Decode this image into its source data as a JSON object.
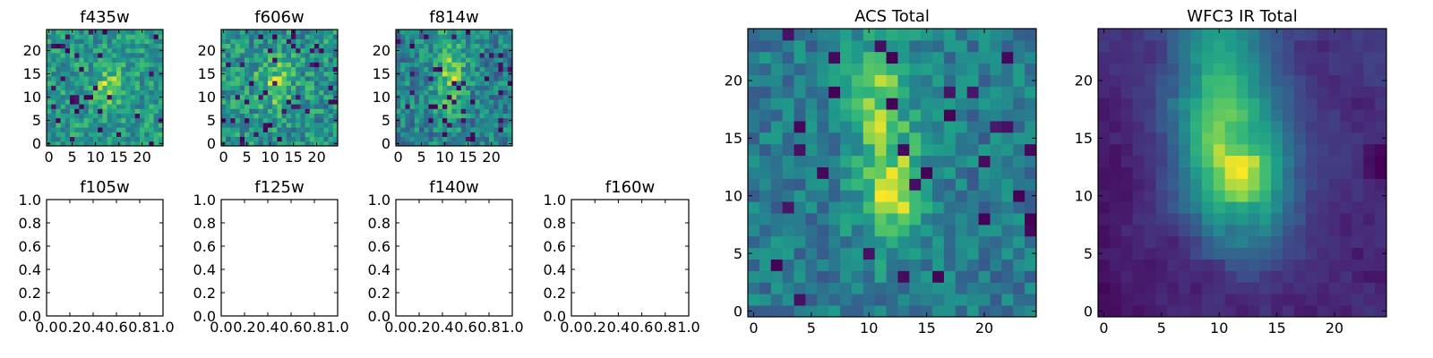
{
  "chart_data": [
    {
      "type": "heatmap",
      "title": "f435w",
      "grid_size": 25,
      "xticks": [
        "0",
        "5",
        "10",
        "15",
        "20"
      ],
      "yticks": [
        "0",
        "5",
        "10",
        "15",
        "20"
      ],
      "xlim": [
        -0.5,
        24.5
      ],
      "ylim": [
        -0.5,
        24.5
      ],
      "colormap": "viridis",
      "pattern": "noisy flux with a faint compact source near (13, 12)"
    },
    {
      "type": "heatmap",
      "title": "f606w",
      "grid_size": 25,
      "xticks": [
        "0",
        "5",
        "10",
        "15",
        "20"
      ],
      "yticks": [
        "0",
        "5",
        "10",
        "15",
        "20"
      ],
      "xlim": [
        -0.5,
        24.5
      ],
      "ylim": [
        -0.5,
        24.5
      ],
      "colormap": "viridis",
      "pattern": "noisy flux with a faint elongated source near (11, 13)"
    },
    {
      "type": "heatmap",
      "title": "f814w",
      "grid_size": 25,
      "xticks": [
        "0",
        "5",
        "10",
        "15",
        "20"
      ],
      "yticks": [
        "0",
        "5",
        "10",
        "15",
        "20"
      ],
      "xlim": [
        -0.5,
        24.5
      ],
      "ylim": [
        -0.5,
        24.5
      ],
      "colormap": "viridis",
      "pattern": "noisy flux with an elongated source along x 9-13, y 8-22"
    },
    {
      "type": "empty",
      "title": "f105w",
      "xticks": [
        "0.0",
        "0.2",
        "0.4",
        "0.6",
        "0.8",
        "1.0"
      ],
      "yticks": [
        "0.0",
        "0.2",
        "0.4",
        "0.6",
        "0.8",
        "1.0"
      ],
      "xlim": [
        0,
        1
      ],
      "ylim": [
        0,
        1
      ]
    },
    {
      "type": "empty",
      "title": "f125w",
      "xticks": [
        "0.0",
        "0.2",
        "0.4",
        "0.6",
        "0.8",
        "1.0"
      ],
      "yticks": [
        "0.0",
        "0.2",
        "0.4",
        "0.6",
        "0.8",
        "1.0"
      ],
      "xlim": [
        0,
        1
      ],
      "ylim": [
        0,
        1
      ]
    },
    {
      "type": "empty",
      "title": "f140w",
      "xticks": [
        "0.0",
        "0.2",
        "0.4",
        "0.6",
        "0.8",
        "1.0"
      ],
      "yticks": [
        "0.0",
        "0.2",
        "0.4",
        "0.6",
        "0.8",
        "1.0"
      ],
      "xlim": [
        0,
        1
      ],
      "ylim": [
        0,
        1
      ]
    },
    {
      "type": "empty",
      "title": "f160w",
      "xticks": [
        "0.0",
        "0.2",
        "0.4",
        "0.6",
        "0.8",
        "1.0"
      ],
      "yticks": [
        "0.0",
        "0.2",
        "0.4",
        "0.6",
        "0.8",
        "1.0"
      ],
      "xlim": [
        0,
        1
      ],
      "ylim": [
        0,
        1
      ]
    },
    {
      "type": "heatmap",
      "title": "ACS Total",
      "grid_size": 25,
      "xticks": [
        "0",
        "5",
        "10",
        "15",
        "20"
      ],
      "yticks": [
        "0",
        "5",
        "10",
        "15",
        "20"
      ],
      "xlim": [
        -0.5,
        24.5
      ],
      "ylim": [
        -0.5,
        24.5
      ],
      "colormap": "viridis",
      "pattern": "noisy stacked flux; bright elongated source along x 10-14, y 8-22"
    },
    {
      "type": "heatmap",
      "title": "WFC3 IR Total",
      "grid_size": 25,
      "xticks": [
        "0",
        "5",
        "10",
        "15",
        "20"
      ],
      "yticks": [
        "0",
        "5",
        "10",
        "15",
        "20"
      ],
      "xlim": [
        -0.5,
        24.5
      ],
      "ylim": [
        -0.5,
        24.5
      ],
      "colormap": "viridis",
      "pattern": "smooth stacked flux; bright elongated source along x 8-14, y 8-24, dark lower-left corner"
    }
  ]
}
